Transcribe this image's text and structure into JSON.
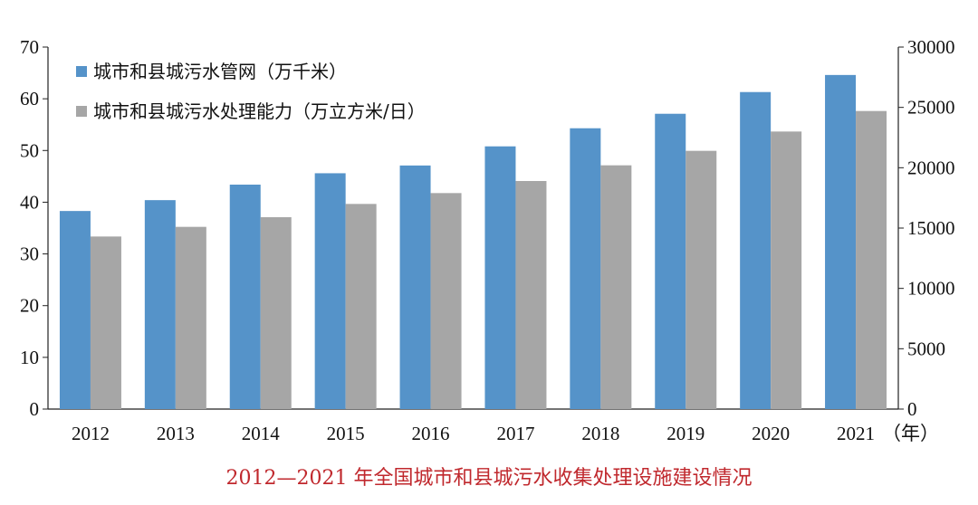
{
  "colors": {
    "series1": "#5593c9",
    "series2": "#a6a6a6",
    "axis": "#222222",
    "caption": "#c0282d"
  },
  "caption": "2012—2021 年全国城市和县城污水收集处理设施建设情况",
  "chart_data": {
    "type": "bar",
    "categories": [
      "2012",
      "2013",
      "2014",
      "2015",
      "2016",
      "2017",
      "2018",
      "2019",
      "2020",
      "2021"
    ],
    "x_unit": "（年）",
    "series": [
      {
        "name": "城市和县城污水管网（万千米）",
        "axis": "left",
        "values": [
          38.3,
          40.4,
          43.4,
          45.6,
          47.1,
          50.8,
          54.3,
          57.1,
          61.3,
          64.6
        ]
      },
      {
        "name": "城市和县城污水处理能力（万立方米/日）",
        "axis": "right",
        "values": [
          14300,
          15100,
          15900,
          17000,
          17900,
          18900,
          20200,
          21400,
          23000,
          24700
        ]
      }
    ],
    "y_left": {
      "min": 0,
      "max": 70,
      "step": 10,
      "ticks": [
        "0",
        "10",
        "20",
        "30",
        "40",
        "50",
        "60",
        "70"
      ]
    },
    "y_right": {
      "min": 0,
      "max": 30000,
      "step": 5000,
      "ticks": [
        "0",
        "5000",
        "10000",
        "15000",
        "20000",
        "25000",
        "30000"
      ]
    },
    "legend_position": "top-left",
    "grid": false
  }
}
